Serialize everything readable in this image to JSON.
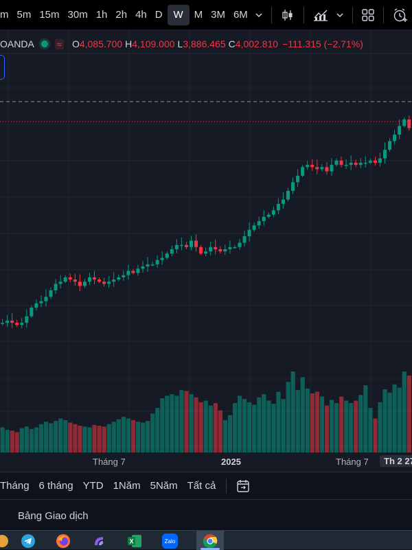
{
  "toolbar": {
    "timeframes": [
      {
        "label": "m",
        "active": false
      },
      {
        "label": "5m",
        "active": false
      },
      {
        "label": "15m",
        "active": false
      },
      {
        "label": "30m",
        "active": false
      },
      {
        "label": "1h",
        "active": false
      },
      {
        "label": "2h",
        "active": false
      },
      {
        "label": "4h",
        "active": false
      },
      {
        "label": "D",
        "active": false
      },
      {
        "label": "W",
        "active": true
      },
      {
        "label": "M",
        "active": false
      },
      {
        "label": "3M",
        "active": false
      },
      {
        "label": "6M",
        "active": false
      }
    ],
    "icons": [
      "chevron-down-icon",
      "candlestick-chart-icon",
      "indicators-icon",
      "chevron-down-icon",
      "layout-grid-icon",
      "alarm-add-icon"
    ]
  },
  "legend": {
    "symbol": "OANDA",
    "open_key": "O",
    "open": "4,085.700",
    "high_key": "H",
    "high": "4,109.000",
    "low_key": "L",
    "low": "3,886.465",
    "close_key": "C",
    "close": "4,002.810",
    "change": "−111.315 (−2.71%)"
  },
  "colors": {
    "up": "#089981",
    "down": "#f23645",
    "background": "#161a25",
    "grid": "#232733",
    "price_line_dashed": "#9598a1",
    "price_line_dotted": "#f23645"
  },
  "chart_data": {
    "type": "candlestick",
    "interval": "W",
    "x_axis_labels": [
      "Tháng 7",
      "2025",
      "Tháng 7",
      "Th 2 27"
    ],
    "note_series": "relative close path, rising trend with up/down candles and volume bars",
    "series": [
      {
        "name": "",
        "closes": [
          0.06,
          0.06,
          0.07,
          0.06,
          0.05,
          0.06,
          0.09,
          0.13,
          0.15,
          0.16,
          0.18,
          0.21,
          0.24,
          0.25,
          0.27,
          0.26,
          0.25,
          0.23,
          0.25,
          0.27,
          0.26,
          0.25,
          0.24,
          0.25,
          0.26,
          0.27,
          0.28,
          0.3,
          0.29,
          0.31,
          0.32,
          0.33,
          0.33,
          0.35,
          0.36,
          0.38,
          0.4,
          0.42,
          0.42,
          0.41,
          0.44,
          0.41,
          0.38,
          0.39,
          0.41,
          0.4,
          0.39,
          0.4,
          0.41,
          0.41,
          0.43,
          0.46,
          0.49,
          0.51,
          0.53,
          0.55,
          0.56,
          0.58,
          0.61,
          0.63,
          0.67,
          0.71,
          0.74,
          0.78,
          0.79,
          0.78,
          0.77,
          0.78,
          0.76,
          0.79,
          0.81,
          0.79,
          0.79,
          0.8,
          0.79,
          0.8,
          0.8,
          0.81,
          0.8,
          0.82,
          0.86,
          0.9,
          0.93,
          0.97,
          1.0,
          0.96
        ],
        "volumes": [
          0.3,
          0.31,
          0.28,
          0.27,
          0.25,
          0.3,
          0.32,
          0.29,
          0.31,
          0.35,
          0.38,
          0.36,
          0.39,
          0.42,
          0.4,
          0.37,
          0.35,
          0.33,
          0.32,
          0.31,
          0.34,
          0.33,
          0.32,
          0.35,
          0.38,
          0.41,
          0.44,
          0.42,
          0.4,
          0.38,
          0.37,
          0.39,
          0.48,
          0.55,
          0.67,
          0.7,
          0.72,
          0.7,
          0.77,
          0.76,
          0.72,
          0.68,
          0.62,
          0.64,
          0.58,
          0.61,
          0.52,
          0.4,
          0.46,
          0.61,
          0.7,
          0.66,
          0.62,
          0.59,
          0.68,
          0.72,
          0.64,
          0.6,
          0.75,
          0.66,
          0.87,
          1.0,
          0.77,
          0.93,
          0.79,
          0.73,
          0.75,
          0.69,
          0.58,
          0.65,
          0.61,
          0.69,
          0.64,
          0.61,
          0.64,
          0.71,
          0.83,
          0.55,
          0.42,
          0.62,
          0.78,
          0.74,
          0.84,
          0.8,
          1.0,
          0.95
        ]
      }
    ]
  },
  "rangebar": {
    "items": [
      "Tháng",
      "6 tháng",
      "YTD",
      "1Năm",
      "5Năm",
      "Tất cả"
    ],
    "goto_icon": "goto-date-icon"
  },
  "bottom_panel": {
    "title": "Bảng Giao dịch"
  },
  "taskbar": {
    "apps": [
      "telegram-icon",
      "firefox-icon",
      "app-launcher-icon",
      "excel-icon",
      "zalo-icon",
      "chrome-icon"
    ],
    "zalo_label": "Zalo"
  }
}
